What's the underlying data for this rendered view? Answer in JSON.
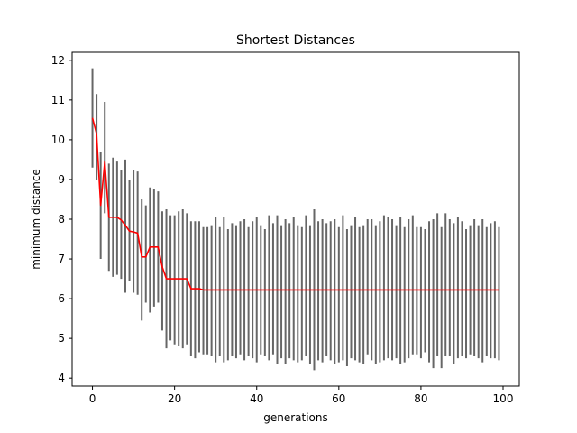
{
  "chart_data": {
    "type": "line",
    "title": "Shortest Distances",
    "xlabel": "generations",
    "ylabel": "minimum distance",
    "xlim": [
      -4.95,
      103.95
    ],
    "ylim": [
      3.8,
      12.2
    ],
    "xticks": [
      0,
      20,
      40,
      60,
      80,
      100
    ],
    "yticks": [
      4,
      5,
      6,
      7,
      8,
      9,
      10,
      11,
      12
    ],
    "grid": false,
    "colors": {
      "line": "#ff0000",
      "errorbar": "#666666",
      "frame": "#000000"
    },
    "series": [
      {
        "kind": "mean-with-range",
        "x": [
          0,
          1,
          2,
          3,
          4,
          5,
          6,
          7,
          8,
          9,
          10,
          11,
          12,
          13,
          14,
          15,
          16,
          17,
          18,
          19,
          20,
          21,
          22,
          23,
          24,
          25,
          26,
          27,
          28,
          29,
          30,
          31,
          32,
          33,
          34,
          35,
          36,
          37,
          38,
          39,
          40,
          41,
          42,
          43,
          44,
          45,
          46,
          47,
          48,
          49,
          50,
          51,
          52,
          53,
          54,
          55,
          56,
          57,
          58,
          59,
          60,
          61,
          62,
          63,
          64,
          65,
          66,
          67,
          68,
          69,
          70,
          71,
          72,
          73,
          74,
          75,
          76,
          77,
          78,
          79,
          80,
          81,
          82,
          83,
          84,
          85,
          86,
          87,
          88,
          89,
          90,
          91,
          92,
          93,
          94,
          95,
          96,
          97,
          98,
          99
        ],
        "y": [
          10.55,
          10.15,
          8.35,
          9.45,
          8.05,
          8.05,
          8.05,
          7.98,
          7.85,
          7.7,
          7.68,
          7.65,
          7.05,
          7.05,
          7.3,
          7.3,
          7.3,
          6.8,
          6.5,
          6.5,
          6.5,
          6.5,
          6.5,
          6.5,
          6.25,
          6.25,
          6.25,
          6.22,
          6.22,
          6.22,
          6.22,
          6.22,
          6.22,
          6.22,
          6.22,
          6.22,
          6.22,
          6.22,
          6.22,
          6.22,
          6.22,
          6.22,
          6.22,
          6.22,
          6.22,
          6.22,
          6.22,
          6.22,
          6.22,
          6.22,
          6.22,
          6.22,
          6.22,
          6.22,
          6.22,
          6.22,
          6.22,
          6.22,
          6.22,
          6.22,
          6.22,
          6.22,
          6.22,
          6.22,
          6.22,
          6.22,
          6.22,
          6.22,
          6.22,
          6.22,
          6.22,
          6.22,
          6.22,
          6.22,
          6.22,
          6.22,
          6.22,
          6.22,
          6.22,
          6.22,
          6.22,
          6.22,
          6.22,
          6.22,
          6.22,
          6.22,
          6.22,
          6.22,
          6.22,
          6.22,
          6.22,
          6.22,
          6.22,
          6.22,
          6.22,
          6.22,
          6.22,
          6.22,
          6.22,
          6.22
        ],
        "low": [
          9.3,
          9.0,
          7.0,
          8.15,
          6.7,
          6.55,
          6.6,
          6.5,
          6.15,
          6.45,
          6.15,
          6.1,
          5.45,
          5.9,
          5.65,
          5.8,
          5.9,
          5.2,
          4.75,
          4.95,
          4.85,
          4.8,
          4.75,
          4.85,
          4.55,
          4.5,
          4.65,
          4.6,
          4.6,
          4.55,
          4.4,
          4.55,
          4.4,
          4.45,
          4.55,
          4.5,
          4.6,
          4.45,
          4.55,
          4.5,
          4.4,
          4.6,
          4.55,
          4.45,
          4.6,
          4.35,
          4.5,
          4.35,
          4.5,
          4.45,
          4.4,
          4.45,
          4.55,
          4.35,
          4.2,
          4.45,
          4.4,
          4.55,
          4.45,
          4.35,
          4.4,
          4.45,
          4.3,
          4.5,
          4.45,
          4.4,
          4.35,
          4.6,
          4.45,
          4.35,
          4.4,
          4.45,
          4.5,
          4.45,
          4.5,
          4.35,
          4.4,
          4.5,
          4.6,
          4.6,
          4.5,
          4.65,
          4.4,
          4.25,
          4.55,
          4.25,
          4.55,
          4.55,
          4.35,
          4.5,
          4.55,
          4.5,
          4.6,
          4.55,
          4.5,
          4.4,
          4.55,
          4.5,
          4.5,
          4.45
        ],
        "high": [
          11.8,
          11.15,
          9.7,
          10.95,
          9.4,
          9.55,
          9.45,
          9.25,
          9.5,
          9.0,
          9.25,
          9.2,
          8.5,
          8.35,
          8.8,
          8.75,
          8.7,
          8.2,
          8.25,
          8.1,
          8.1,
          8.2,
          8.25,
          8.15,
          7.95,
          7.95,
          7.95,
          7.8,
          7.8,
          7.85,
          8.05,
          7.8,
          8.05,
          7.75,
          7.9,
          7.85,
          7.95,
          8.0,
          7.8,
          7.95,
          8.05,
          7.85,
          7.75,
          8.1,
          7.9,
          8.1,
          7.85,
          8.0,
          7.9,
          8.05,
          7.85,
          7.8,
          8.1,
          7.85,
          8.25,
          7.95,
          8.0,
          7.9,
          7.95,
          8.0,
          7.8,
          8.1,
          7.75,
          7.85,
          8.05,
          7.8,
          7.85,
          8.0,
          8.0,
          7.85,
          7.95,
          8.1,
          8.05,
          8.0,
          7.85,
          8.05,
          7.8,
          8.0,
          8.1,
          7.8,
          7.8,
          7.75,
          7.95,
          8.0,
          8.15,
          7.8,
          8.15,
          8.0,
          7.9,
          8.05,
          7.95,
          7.75,
          7.85,
          8.0,
          7.85,
          8.0,
          7.8,
          7.9,
          7.95,
          7.8
        ]
      }
    ]
  }
}
